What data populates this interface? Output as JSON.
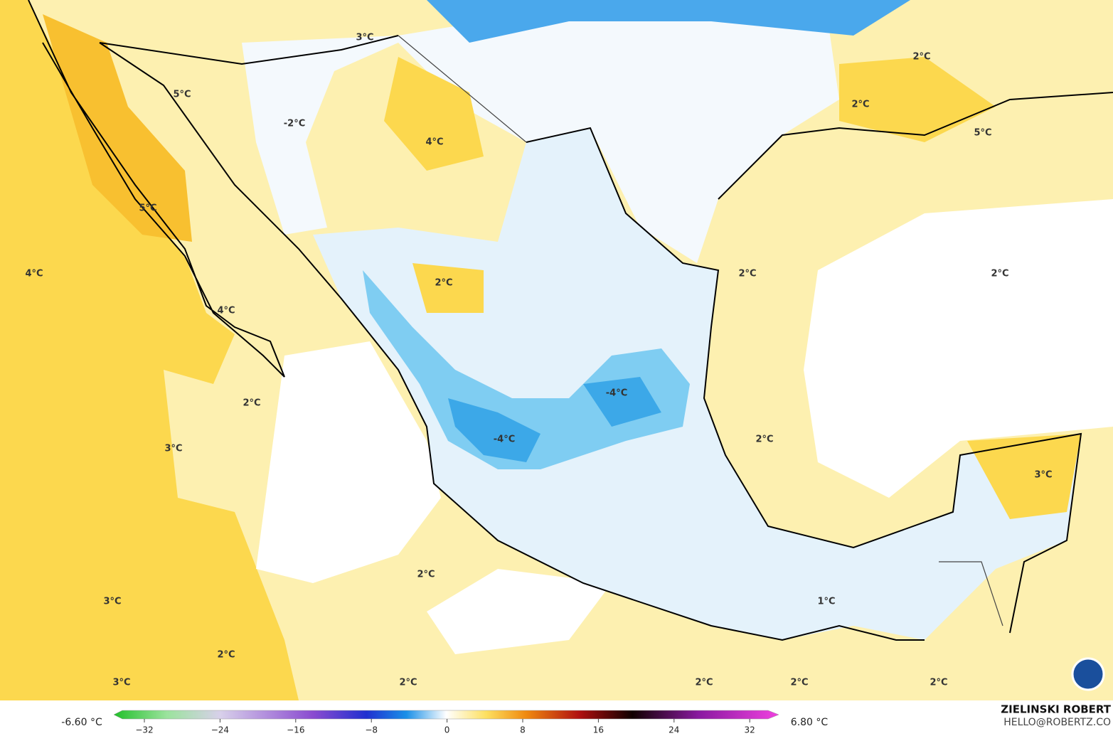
{
  "map_labels": [
    "3°C",
    "2°C",
    "5°C",
    "-2°C",
    "2°C",
    "4°C",
    "5°C",
    "5°C",
    "4°C",
    "2°C",
    "2°C",
    "2°C",
    "4°C",
    "-4°C",
    "2°C",
    "3°C",
    "-4°C",
    "2°C",
    "3°C",
    "2°C",
    "1°C",
    "3°C",
    "2°C",
    "3°C",
    "2°C",
    "2°C",
    "2°C",
    "2°C"
  ],
  "colorbar": {
    "min_label": "-6.60 °C",
    "max_label": "6.80 °C",
    "ticks": [
      "−32",
      "−24",
      "−16",
      "−8",
      "0",
      "8",
      "16",
      "24",
      "32"
    ]
  },
  "credit": {
    "name": "ZIELINSKI ROBERT",
    "email": "HELLO@ROBERTZ.CO"
  }
}
